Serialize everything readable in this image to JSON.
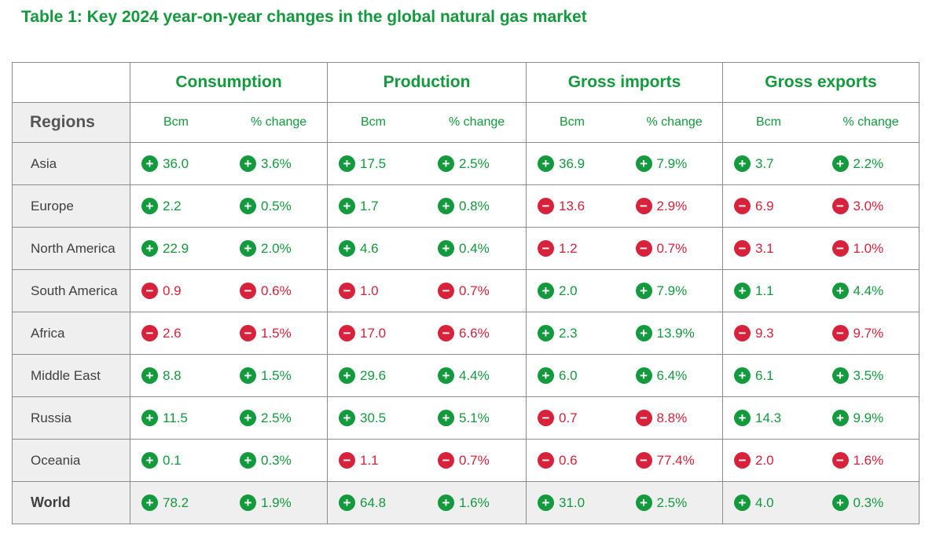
{
  "title": "Table 1: Key 2024 year-on-year changes in the global natural gas market",
  "header": {
    "regions_label": "Regions",
    "groups": [
      "Consumption",
      "Production",
      "Gross imports",
      "Gross exports"
    ],
    "sub_bcm": "Bcm",
    "sub_pct": "% change"
  },
  "colors": {
    "accent_green": "#139a3d",
    "decline_red": "#d8213a",
    "region_bg": "#efeff0"
  },
  "icons": {
    "increase": "+",
    "decrease": "−"
  },
  "rows": [
    {
      "region": "Asia",
      "cells": [
        {
          "v": "36.0",
          "d": "up"
        },
        {
          "v": "3.6%",
          "d": "up"
        },
        {
          "v": "17.5",
          "d": "up"
        },
        {
          "v": "2.5%",
          "d": "up"
        },
        {
          "v": "36.9",
          "d": "up"
        },
        {
          "v": "7.9%",
          "d": "up"
        },
        {
          "v": "3.7",
          "d": "up"
        },
        {
          "v": "2.2%",
          "d": "up"
        }
      ]
    },
    {
      "region": "Europe",
      "cells": [
        {
          "v": "2.2",
          "d": "up"
        },
        {
          "v": "0.5%",
          "d": "up"
        },
        {
          "v": "1.7",
          "d": "up"
        },
        {
          "v": "0.8%",
          "d": "up"
        },
        {
          "v": "13.6",
          "d": "down"
        },
        {
          "v": "2.9%",
          "d": "down"
        },
        {
          "v": "6.9",
          "d": "down"
        },
        {
          "v": "3.0%",
          "d": "down"
        }
      ]
    },
    {
      "region": "North America",
      "cells": [
        {
          "v": "22.9",
          "d": "up"
        },
        {
          "v": "2.0%",
          "d": "up"
        },
        {
          "v": "4.6",
          "d": "up"
        },
        {
          "v": "0.4%",
          "d": "up"
        },
        {
          "v": "1.2",
          "d": "down"
        },
        {
          "v": "0.7%",
          "d": "down"
        },
        {
          "v": "3.1",
          "d": "down"
        },
        {
          "v": "1.0%",
          "d": "down"
        }
      ]
    },
    {
      "region": "South America",
      "cells": [
        {
          "v": "0.9",
          "d": "down"
        },
        {
          "v": "0.6%",
          "d": "down"
        },
        {
          "v": "1.0",
          "d": "down"
        },
        {
          "v": "0.7%",
          "d": "down"
        },
        {
          "v": "2.0",
          "d": "up"
        },
        {
          "v": "7.9%",
          "d": "up"
        },
        {
          "v": "1.1",
          "d": "up"
        },
        {
          "v": "4.4%",
          "d": "up"
        }
      ]
    },
    {
      "region": "Africa",
      "cells": [
        {
          "v": "2.6",
          "d": "down"
        },
        {
          "v": "1.5%",
          "d": "down"
        },
        {
          "v": "17.0",
          "d": "down"
        },
        {
          "v": "6.6%",
          "d": "down"
        },
        {
          "v": "2.3",
          "d": "up"
        },
        {
          "v": "13.9%",
          "d": "up"
        },
        {
          "v": "9.3",
          "d": "down"
        },
        {
          "v": "9.7%",
          "d": "down"
        }
      ]
    },
    {
      "region": "Middle East",
      "cells": [
        {
          "v": "8.8",
          "d": "up"
        },
        {
          "v": "1.5%",
          "d": "up"
        },
        {
          "v": "29.6",
          "d": "up"
        },
        {
          "v": "4.4%",
          "d": "up"
        },
        {
          "v": "6.0",
          "d": "up"
        },
        {
          "v": "6.4%",
          "d": "up"
        },
        {
          "v": "6.1",
          "d": "up"
        },
        {
          "v": "3.5%",
          "d": "up"
        }
      ]
    },
    {
      "region": "Russia",
      "cells": [
        {
          "v": "11.5",
          "d": "up"
        },
        {
          "v": "2.5%",
          "d": "up"
        },
        {
          "v": "30.5",
          "d": "up"
        },
        {
          "v": "5.1%",
          "d": "up"
        },
        {
          "v": "0.7",
          "d": "down"
        },
        {
          "v": "8.8%",
          "d": "down"
        },
        {
          "v": "14.3",
          "d": "up"
        },
        {
          "v": "9.9%",
          "d": "up"
        }
      ]
    },
    {
      "region": "Oceania",
      "cells": [
        {
          "v": "0.1",
          "d": "up"
        },
        {
          "v": "0.3%",
          "d": "up"
        },
        {
          "v": "1.1",
          "d": "down"
        },
        {
          "v": "0.7%",
          "d": "down"
        },
        {
          "v": "0.6",
          "d": "down"
        },
        {
          "v": "77.4%",
          "d": "down"
        },
        {
          "v": "2.0",
          "d": "down"
        },
        {
          "v": "1.6%",
          "d": "down"
        }
      ]
    },
    {
      "region": "World",
      "cells": [
        {
          "v": "78.2",
          "d": "up"
        },
        {
          "v": "1.9%",
          "d": "up"
        },
        {
          "v": "64.8",
          "d": "up"
        },
        {
          "v": "1.6%",
          "d": "up"
        },
        {
          "v": "31.0",
          "d": "up"
        },
        {
          "v": "2.5%",
          "d": "up"
        },
        {
          "v": "4.0",
          "d": "up"
        },
        {
          "v": "0.3%",
          "d": "up"
        }
      ]
    }
  ]
}
